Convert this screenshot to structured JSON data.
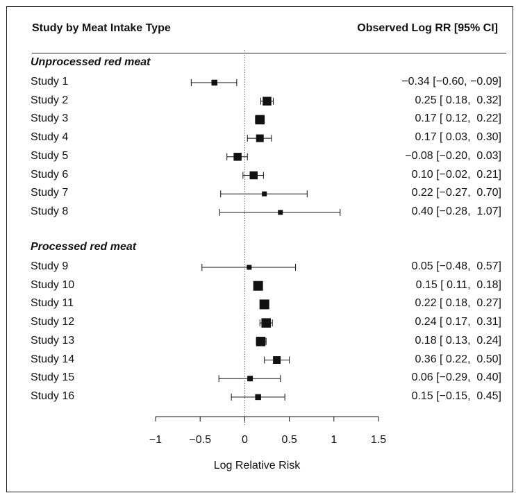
{
  "chart_data": {
    "type": "forest",
    "header_left": "Study by Meat Intake Type",
    "header_right": "Observed Log RR [95% CI]",
    "xlabel": "Log Relative Risk",
    "xlim": [
      -1,
      1.5
    ],
    "xticks": [
      "−1",
      "−0.5",
      "0",
      "0.5",
      "1",
      "1.5"
    ],
    "xtick_values": [
      -1,
      -0.5,
      0,
      0.5,
      1,
      1.5
    ],
    "reference_line": 0,
    "groups": [
      {
        "label": "Unprocessed red meat",
        "studies": [
          {
            "name": "Study 1",
            "est": -0.34,
            "lo": -0.6,
            "hi": -0.09,
            "weight": 0.45,
            "text": "−0.34 [−0.60, −0.09]"
          },
          {
            "name": "Study 2",
            "est": 0.25,
            "lo": 0.18,
            "hi": 0.32,
            "weight": 0.85,
            "text": "0.25 [ 0.18,  0.32]"
          },
          {
            "name": "Study 3",
            "est": 0.17,
            "lo": 0.12,
            "hi": 0.22,
            "weight": 0.95,
            "text": "0.17 [ 0.12,  0.22]"
          },
          {
            "name": "Study 4",
            "est": 0.17,
            "lo": 0.03,
            "hi": 0.3,
            "weight": 0.7,
            "text": "0.17 [ 0.03,  0.30]"
          },
          {
            "name": "Study 5",
            "est": -0.08,
            "lo": -0.2,
            "hi": 0.03,
            "weight": 0.75,
            "text": "−0.08 [−0.20,  0.03]"
          },
          {
            "name": "Study 6",
            "est": 0.1,
            "lo": -0.02,
            "hi": 0.21,
            "weight": 0.75,
            "text": "0.10 [−0.02,  0.21]"
          },
          {
            "name": "Study 7",
            "est": 0.22,
            "lo": -0.27,
            "hi": 0.7,
            "weight": 0.3,
            "text": "0.22 [−0.27,  0.70]"
          },
          {
            "name": "Study 8",
            "est": 0.4,
            "lo": -0.28,
            "hi": 1.07,
            "weight": 0.3,
            "text": "0.40 [−0.28,  1.07]"
          }
        ]
      },
      {
        "label": "Processed red meat",
        "studies": [
          {
            "name": "Study 9",
            "est": 0.05,
            "lo": -0.48,
            "hi": 0.57,
            "weight": 0.3,
            "text": "0.05 [−0.48,  0.57]"
          },
          {
            "name": "Study 10",
            "est": 0.15,
            "lo": 0.11,
            "hi": 0.18,
            "weight": 1.0,
            "text": "0.15 [ 0.11,  0.18]"
          },
          {
            "name": "Study 11",
            "est": 0.22,
            "lo": 0.18,
            "hi": 0.27,
            "weight": 1.0,
            "text": "0.22 [ 0.18,  0.27]"
          },
          {
            "name": "Study 12",
            "est": 0.24,
            "lo": 0.17,
            "hi": 0.31,
            "weight": 0.95,
            "text": "0.24 [ 0.17,  0.31]"
          },
          {
            "name": "Study 13",
            "est": 0.18,
            "lo": 0.13,
            "hi": 0.24,
            "weight": 0.95,
            "text": "0.18 [ 0.13,  0.24]"
          },
          {
            "name": "Study 14",
            "est": 0.36,
            "lo": 0.22,
            "hi": 0.5,
            "weight": 0.7,
            "text": "0.36 [ 0.22,  0.50]"
          },
          {
            "name": "Study 15",
            "est": 0.06,
            "lo": -0.29,
            "hi": 0.4,
            "weight": 0.4,
            "text": "0.06 [−0.29,  0.40]"
          },
          {
            "name": "Study 16",
            "est": 0.15,
            "lo": -0.15,
            "hi": 0.45,
            "weight": 0.45,
            "text": "0.15 [−0.15,  0.45]"
          }
        ]
      }
    ]
  }
}
